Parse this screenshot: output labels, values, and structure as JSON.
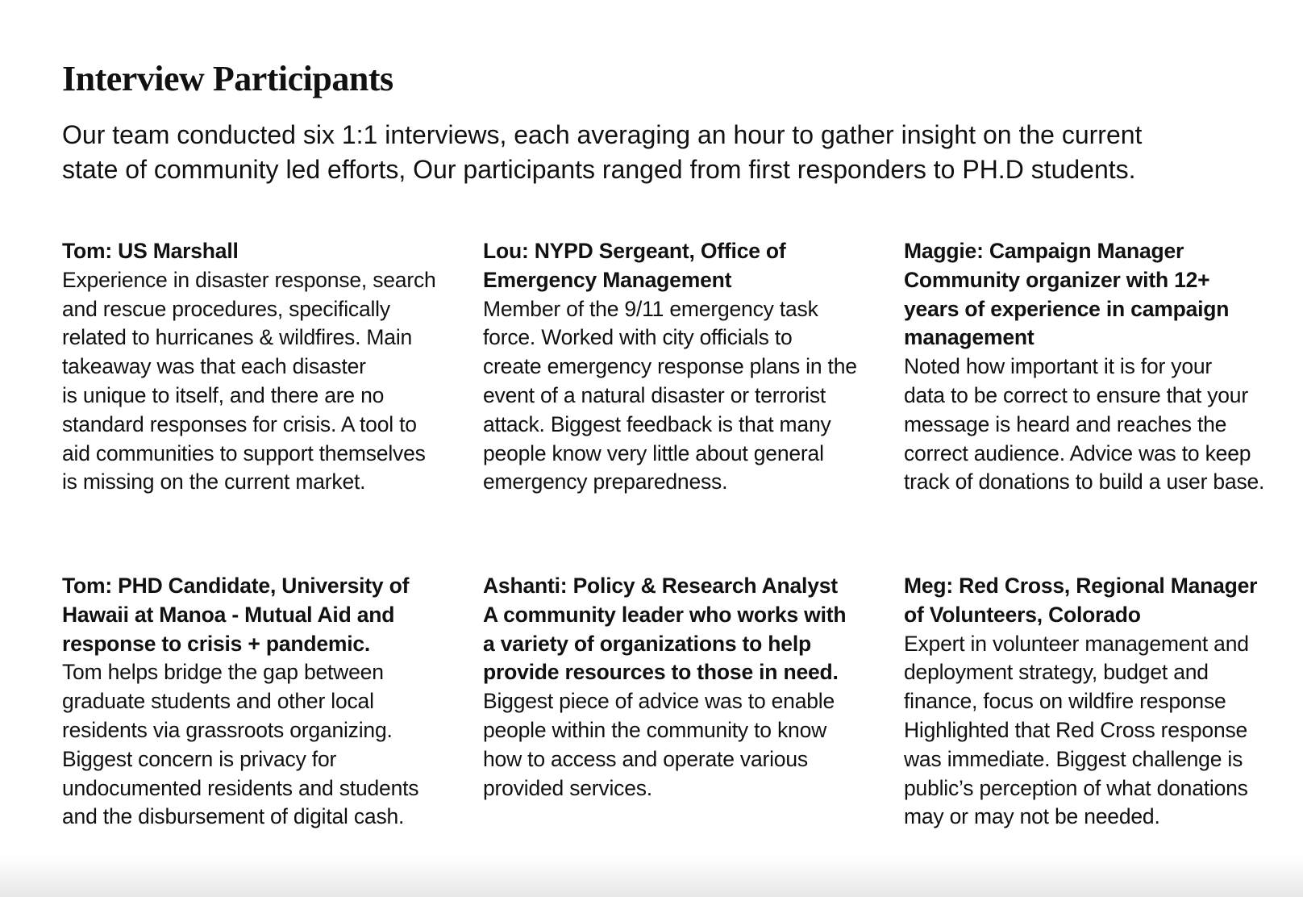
{
  "title": "Interview Participants",
  "intro": [
    "Our team conducted six 1:1 interviews, each averaging an hour to gather insight on the current",
    "state of community led efforts, Our participants ranged from first responders to PH.D students."
  ],
  "participants": [
    {
      "bold": [
        "Tom: US Marshall"
      ],
      "body": [
        "Experience in disaster response, search",
        "and rescue procedures, specifically",
        "related to hurricanes & wildfires. Main",
        "takeaway was that each disaster",
        "is unique to itself, and there are no",
        "standard responses for crisis. A tool to",
        "aid communities to support themselves",
        "is missing on the current market."
      ]
    },
    {
      "bold": [
        "Lou: NYPD Sergeant, Office of",
        "Emergency Management"
      ],
      "body": [
        "Member of the  9/11 emergency task",
        "force. Worked with city officials to",
        "create emergency response plans in the",
        "event of a natural disaster or terrorist",
        "attack. Biggest feedback is that many",
        "people know very little about general",
        "emergency preparedness."
      ]
    },
    {
      "bold": [
        "Maggie: Campaign Manager",
        "Community organizer with 12+",
        "years of experience in campaign",
        "management"
      ],
      "body": [
        "Noted how important it is for your",
        "data to be correct to ensure that your",
        "message is heard and reaches the",
        "correct audience. Advice was to keep",
        "track of donations to build a user base."
      ]
    },
    {
      "bold": [
        "Tom: PHD Candidate, University of",
        "Hawaii at Manoa - Mutual Aid and",
        "response to crisis + pandemic."
      ],
      "body": [
        "Tom helps bridge the gap between",
        "graduate students and other local",
        "residents via grassroots organizing.",
        "Biggest concern is privacy for",
        "undocumented residents and students",
        "and the disbursement of digital cash."
      ]
    },
    {
      "bold": [
        "Ashanti: Policy & Research Analyst",
        "A community leader who works with",
        "a variety of organizations to help",
        "provide resources to those in need."
      ],
      "body": [
        "Biggest piece of advice was to enable",
        "people within the community to know",
        "how to access and operate various",
        "provided services."
      ]
    },
    {
      "bold": [
        "Meg: Red Cross, Regional Manager",
        "of Volunteers, Colorado"
      ],
      "body": [
        "Expert in volunteer management and",
        "deployment strategy, budget and",
        "finance, focus on wildfire response",
        "Highlighted that Red Cross response",
        "was immediate. Biggest challenge is",
        "public’s perception of what donations",
        "may or may not be needed."
      ]
    }
  ]
}
